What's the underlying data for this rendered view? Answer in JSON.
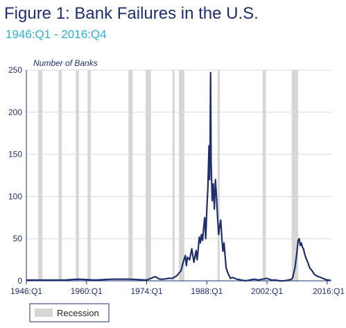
{
  "chart_data": {
    "type": "line",
    "title": "Figure 1:  Bank Failures in the U.S.",
    "subtitle": "1946:Q1 - 2016:Q4",
    "ylabel": "Number of Banks",
    "xlabel": "",
    "ylim": [
      0,
      250
    ],
    "yticks": [
      "0",
      "50",
      "100",
      "150",
      "200",
      "250"
    ],
    "xlim": [
      1946,
      2017
    ],
    "xticks": [
      {
        "label": "1946:Q1",
        "t": 1946
      },
      {
        "label": "1960:Q1",
        "t": 1960
      },
      {
        "label": "1974:Q1",
        "t": 1974
      },
      {
        "label": "1988:Q1",
        "t": 1988
      },
      {
        "label": "2002:Q1",
        "t": 2002
      },
      {
        "label": "2016:Q1",
        "t": 2016
      }
    ],
    "grid": true,
    "legend": {
      "position": "bottom-left",
      "entries": [
        "Recession"
      ]
    },
    "colors": {
      "line": "#1f2f6e",
      "recession": "#d6d6d6",
      "title": "#1f2f6e",
      "subtitle": "#2ab0d6",
      "grid": "#d9d9d9"
    },
    "recessions": [
      [
        1948.75,
        1949.75
      ],
      [
        1953.5,
        1954.25
      ],
      [
        1957.5,
        1958.25
      ],
      [
        1960.25,
        1961.0
      ],
      [
        1969.75,
        1970.75
      ],
      [
        1973.75,
        1975.0
      ],
      [
        1980.0,
        1980.5
      ],
      [
        1981.5,
        1982.75
      ],
      [
        1990.5,
        1991.0
      ],
      [
        2001.0,
        2001.75
      ],
      [
        2007.75,
        2009.25
      ]
    ],
    "series": [
      {
        "values": [
          [
            1946.0,
            1
          ],
          [
            1950.0,
            1
          ],
          [
            1955.0,
            1
          ],
          [
            1958.0,
            2
          ],
          [
            1962.0,
            1
          ],
          [
            1966.0,
            2
          ],
          [
            1970.0,
            2
          ],
          [
            1974.0,
            1
          ],
          [
            1975.0,
            3
          ],
          [
            1976.0,
            5
          ],
          [
            1977.0,
            2
          ],
          [
            1978.0,
            2
          ],
          [
            1979.0,
            3
          ],
          [
            1980.0,
            3
          ],
          [
            1981.0,
            6
          ],
          [
            1982.0,
            12
          ],
          [
            1982.5,
            22
          ],
          [
            1983.0,
            30
          ],
          [
            1983.25,
            18
          ],
          [
            1983.5,
            28
          ],
          [
            1984.0,
            25
          ],
          [
            1984.5,
            38
          ],
          [
            1985.0,
            22
          ],
          [
            1985.5,
            36
          ],
          [
            1985.75,
            25
          ],
          [
            1986.0,
            38
          ],
          [
            1986.25,
            52
          ],
          [
            1986.5,
            45
          ],
          [
            1986.75,
            55
          ],
          [
            1987.0,
            48
          ],
          [
            1987.25,
            62
          ],
          [
            1987.5,
            75
          ],
          [
            1987.75,
            50
          ],
          [
            1988.0,
            85
          ],
          [
            1988.25,
            110
          ],
          [
            1988.5,
            160
          ],
          [
            1988.625,
            120
          ],
          [
            1988.75,
            155
          ],
          [
            1988.875,
            247
          ],
          [
            1989.0,
            140
          ],
          [
            1989.25,
            95
          ],
          [
            1989.5,
            115
          ],
          [
            1989.75,
            85
          ],
          [
            1990.0,
            120
          ],
          [
            1990.25,
            100
          ],
          [
            1990.5,
            75
          ],
          [
            1990.75,
            55
          ],
          [
            1991.0,
            65
          ],
          [
            1991.25,
            72
          ],
          [
            1991.5,
            50
          ],
          [
            1991.75,
            35
          ],
          [
            1992.0,
            45
          ],
          [
            1992.25,
            30
          ],
          [
            1992.5,
            15
          ],
          [
            1993.0,
            8
          ],
          [
            1993.5,
            3
          ],
          [
            1994.0,
            4
          ],
          [
            1995.0,
            2
          ],
          [
            1996.0,
            1
          ],
          [
            1997.0,
            0
          ],
          [
            1998.0,
            1
          ],
          [
            1999.0,
            2
          ],
          [
            2000.0,
            1
          ],
          [
            2001.0,
            2
          ],
          [
            2002.0,
            3
          ],
          [
            2003.0,
            1
          ],
          [
            2004.0,
            1
          ],
          [
            2005.0,
            0
          ],
          [
            2006.0,
            0
          ],
          [
            2007.0,
            1
          ],
          [
            2007.75,
            2
          ],
          [
            2008.0,
            4
          ],
          [
            2008.25,
            10
          ],
          [
            2008.5,
            15
          ],
          [
            2008.75,
            25
          ],
          [
            2009.0,
            35
          ],
          [
            2009.25,
            48
          ],
          [
            2009.5,
            50
          ],
          [
            2009.75,
            42
          ],
          [
            2010.0,
            45
          ],
          [
            2010.25,
            40
          ],
          [
            2010.5,
            38
          ],
          [
            2010.75,
            32
          ],
          [
            2011.0,
            28
          ],
          [
            2011.25,
            25
          ],
          [
            2011.5,
            22
          ],
          [
            2011.75,
            18
          ],
          [
            2012.0,
            15
          ],
          [
            2012.5,
            12
          ],
          [
            2013.0,
            8
          ],
          [
            2013.5,
            6
          ],
          [
            2014.0,
            5
          ],
          [
            2014.5,
            4
          ],
          [
            2015.0,
            3
          ],
          [
            2015.5,
            2
          ],
          [
            2016.0,
            1
          ],
          [
            2016.75,
            1
          ]
        ]
      }
    ]
  }
}
